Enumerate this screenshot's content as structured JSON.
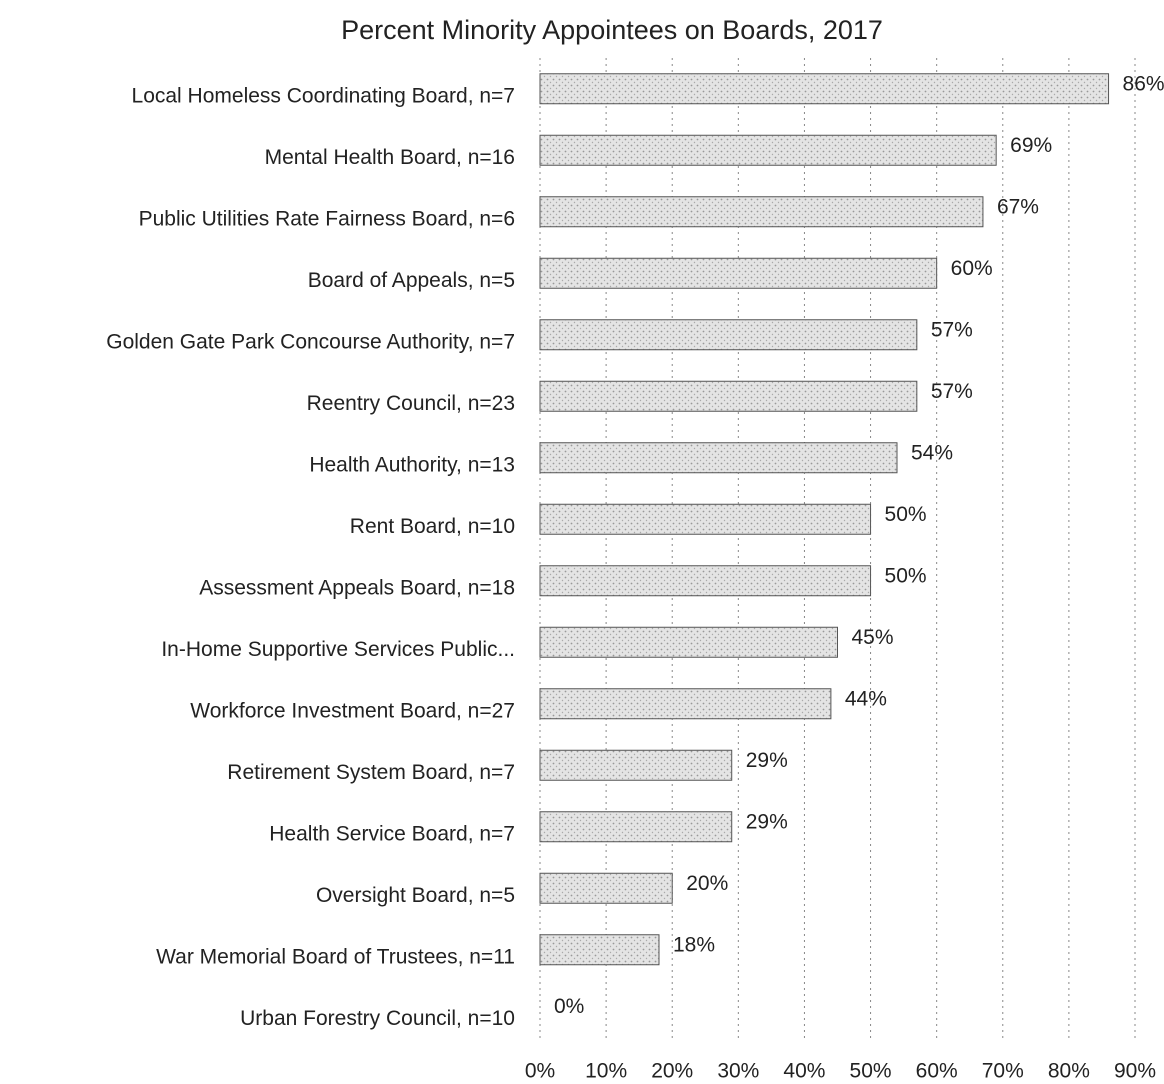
{
  "chart_data": {
    "type": "hbar",
    "title": "Percent Minority Appointees on Boards, 2017",
    "categories": [
      "Local Homeless Coordinating Board, n=7",
      "Mental Health Board, n=16",
      "Public Utilities Rate Fairness Board, n=6",
      "Board of Appeals, n=5",
      "Golden Gate Park Concourse Authority, n=7",
      "Reentry Council, n=23",
      "Health Authority, n=13",
      "Rent Board, n=10",
      "Assessment Appeals Board, n=18",
      "In-Home Supportive Services Public...",
      "Workforce Investment Board, n=27",
      "Retirement System Board, n=7",
      "Health Service Board, n=7",
      "Oversight Board, n=5",
      "War Memorial Board of Trustees, n=11",
      "Urban Forestry Council, n=10"
    ],
    "values": [
      86,
      69,
      67,
      60,
      57,
      57,
      54,
      50,
      50,
      45,
      44,
      29,
      29,
      20,
      18,
      0
    ],
    "value_labels": [
      "86%",
      "69%",
      "67%",
      "60%",
      "57%",
      "57%",
      "54%",
      "50%",
      "50%",
      "45%",
      "44%",
      "29%",
      "29%",
      "20%",
      "18%",
      "0%"
    ],
    "color": "#d9d9d9",
    "xlim": [
      0,
      90
    ],
    "xticks": [
      {
        "value": 0,
        "label": "0%"
      },
      {
        "value": 10,
        "label": "10%"
      },
      {
        "value": 20,
        "label": "20%"
      },
      {
        "value": 30,
        "label": "30%"
      },
      {
        "value": 40,
        "label": "40%"
      },
      {
        "value": 50,
        "label": "50%"
      },
      {
        "value": 60,
        "label": "60%"
      },
      {
        "value": 70,
        "label": "70%"
      },
      {
        "value": 80,
        "label": "80%"
      },
      {
        "value": 90,
        "label": "90%"
      }
    ],
    "grid": true
  }
}
